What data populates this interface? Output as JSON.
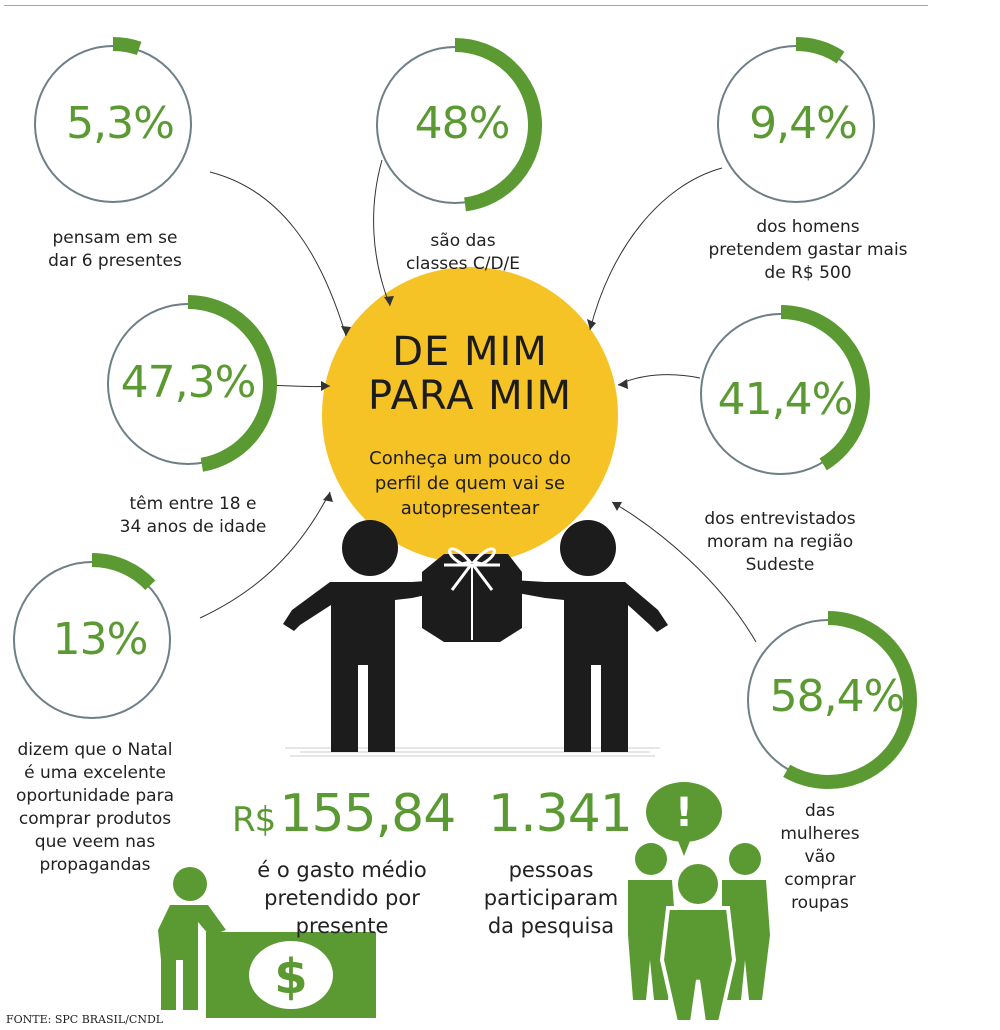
{
  "title_line1": "DE MIM",
  "title_line2": "PARA MIM",
  "subtitle": "Conheça um pouco do perfil de quem vai se autopresentear",
  "stats": [
    {
      "value": "5,3%",
      "fraction": 0.053,
      "caption": "pensam em se dar 6 presentes"
    },
    {
      "value": "48%",
      "fraction": 0.48,
      "caption": "são das classes C/D/E"
    },
    {
      "value": "9,4%",
      "fraction": 0.094,
      "caption": "dos homens pretendem gastar mais de R$ 500"
    },
    {
      "value": "47,3%",
      "fraction": 0.473,
      "caption": "têm entre 18 e 34 anos de idade"
    },
    {
      "value": "41,4%",
      "fraction": 0.414,
      "caption": "dos entrevistados moram na região Sudeste"
    },
    {
      "value": "13%",
      "fraction": 0.13,
      "caption": "dizem que o Natal é uma excelente oportunidade para comprar produtos que veem nas propagandas"
    },
    {
      "value": "58,4%",
      "fraction": 0.584,
      "caption": "das mulheres vão comprar roupas"
    }
  ],
  "spend": {
    "currency": "R$",
    "value": "155,84",
    "caption": "é o gasto médio pretendido por presente"
  },
  "people": {
    "value": "1.341",
    "caption": "pessoas participaram da pesquisa"
  },
  "money_symbol": "$",
  "alert_symbol": "!",
  "source": "FONTE: SPC BRASIL/CNDL",
  "colors": {
    "green": "#5b9a32",
    "yellow": "#f6c327",
    "ring": "#6e7f86",
    "dark": "#1c1c1c"
  }
}
